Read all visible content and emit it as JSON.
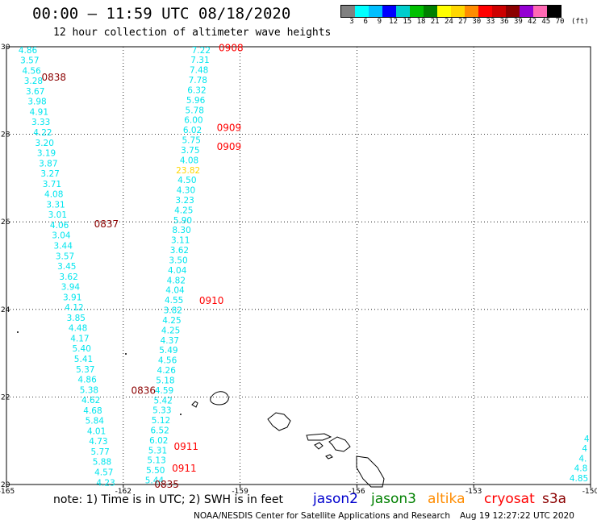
{
  "header": {
    "title": "00:00 – 11:59 UTC 08/18/2020",
    "subtitle": "12 hour collection of altimeter wave heights"
  },
  "colorbar": {
    "labels": [
      "3",
      "6",
      "9",
      "12",
      "15",
      "18",
      "21",
      "24",
      "27",
      "30",
      "33",
      "36",
      "39",
      "42",
      "45",
      "70"
    ],
    "unit": "(ft)",
    "colors": [
      "#808080",
      "#00ffff",
      "#00bfff",
      "#0000ff",
      "#00cdcd",
      "#00c000",
      "#008000",
      "#ffff00",
      "#ffd700",
      "#ff8c00",
      "#ff0000",
      "#cd0000",
      "#8b0000",
      "#9400d3",
      "#ff69b4",
      "#000000"
    ]
  },
  "axes": {
    "lon_ticks": [
      "-165",
      "-162",
      "-159",
      "-156",
      "-153",
      "-150"
    ],
    "lat_ticks": [
      "20",
      "22",
      "24",
      "26",
      "28",
      "30"
    ],
    "lon_range": [
      -165,
      -150
    ],
    "lat_range": [
      20,
      30
    ],
    "grid": "dotted"
  },
  "tracks": [
    {
      "color": "#00e5ee",
      "lon_start": -164.45,
      "lat_start": 29.93,
      "lon_end": -162.45,
      "lat_end": 20.05,
      "values": [
        "4.86",
        "3.57",
        "4.56",
        "3.28",
        "3.67",
        "3.98",
        "4.91",
        "3.33",
        "4.22",
        "3.20",
        "3.19",
        "3.87",
        "3.27",
        "3.71",
        "4.08",
        "3.31",
        "3.01",
        "4.06",
        "3.04",
        "3.44",
        "3.57",
        "3.45",
        "3.62",
        "3.94",
        "3.91",
        "4.12",
        "3.85",
        "4.48",
        "4.17",
        "5.40",
        "5.41",
        "5.37",
        "4.86",
        "5.38",
        "4.62",
        "4.68",
        "5.84",
        "4.01",
        "4.73",
        "5.77",
        "5.88",
        "4.57",
        "4.23"
      ]
    },
    {
      "color": "#00e5ee",
      "lon_start": -160.0,
      "lat_start": 29.93,
      "lon_end": -161.2,
      "lat_end": 20.1,
      "values": [
        "7.22",
        "7.31",
        "7.48",
        "7.78",
        "6.32",
        "5.96",
        "5.78",
        "6.00",
        "6.02",
        "5.75",
        "3.75",
        "4.08",
        "23.82",
        "4.50",
        "4.30",
        "3.23",
        "4.25",
        "5.90",
        "8.30",
        "3.11",
        "3.62",
        "3.50",
        "4.04",
        "4.82",
        "4.04",
        "4.55",
        "3.82",
        "4.25",
        "4.25",
        "4.37",
        "5.49",
        "4.56",
        "4.26",
        "5.18",
        "4.59",
        "5.42",
        "5.33",
        "5.12",
        "6.52",
        "6.02",
        "5.31",
        "5.13",
        "5.50",
        "5.44"
      ]
    },
    {
      "color": "#00e5ee",
      "lon_start": -150.1,
      "lat_start": 21.05,
      "lon_end": -150.3,
      "lat_end": 20.15,
      "values": [
        "4",
        "4",
        "4.",
        "4.8",
        "4.85"
      ]
    }
  ],
  "highlight_value": {
    "track": 1,
    "index": 12,
    "color": "#ffd700"
  },
  "time_labels": [
    {
      "text": "0908",
      "lon": -159.55,
      "lat": 29.97,
      "color": "#ff0000"
    },
    {
      "text": "0838",
      "lon": -164.1,
      "lat": 29.3,
      "color": "#8b0000"
    },
    {
      "text": "0909",
      "lon": -159.6,
      "lat": 28.15,
      "color": "#ff0000"
    },
    {
      "text": "0909",
      "lon": -159.6,
      "lat": 27.72,
      "color": "#ff0000"
    },
    {
      "text": "0837",
      "lon": -162.75,
      "lat": 25.95,
      "color": "#8b0000"
    },
    {
      "text": "0910",
      "lon": -160.05,
      "lat": 24.2,
      "color": "#ff0000"
    },
    {
      "text": "0836",
      "lon": -161.8,
      "lat": 22.15,
      "color": "#8b0000"
    },
    {
      "text": "0911",
      "lon": -160.7,
      "lat": 20.87,
      "color": "#ff0000"
    },
    {
      "text": "0911",
      "lon": -160.75,
      "lat": 20.37,
      "color": "#ff0000"
    },
    {
      "text": "0835",
      "lon": -161.2,
      "lat": 20.0,
      "color": "#8b0000"
    }
  ],
  "footer": {
    "note": "note: 1) Time is in UTC; 2) SWH is in feet",
    "satellites": [
      {
        "name": "jason2",
        "color": "#0000cd"
      },
      {
        "name": "jason3",
        "color": "#008000"
      },
      {
        "name": "altika",
        "color": "#ff8c00"
      },
      {
        "name": "cryosat",
        "color": "#ff0000"
      },
      {
        "name": "s3a",
        "color": "#8b0000"
      }
    ],
    "credit": "NOAA/NESDIS Center for Satellite Applications and Research",
    "timestamp": "Aug 19 12:27:22 UTC 2020"
  }
}
